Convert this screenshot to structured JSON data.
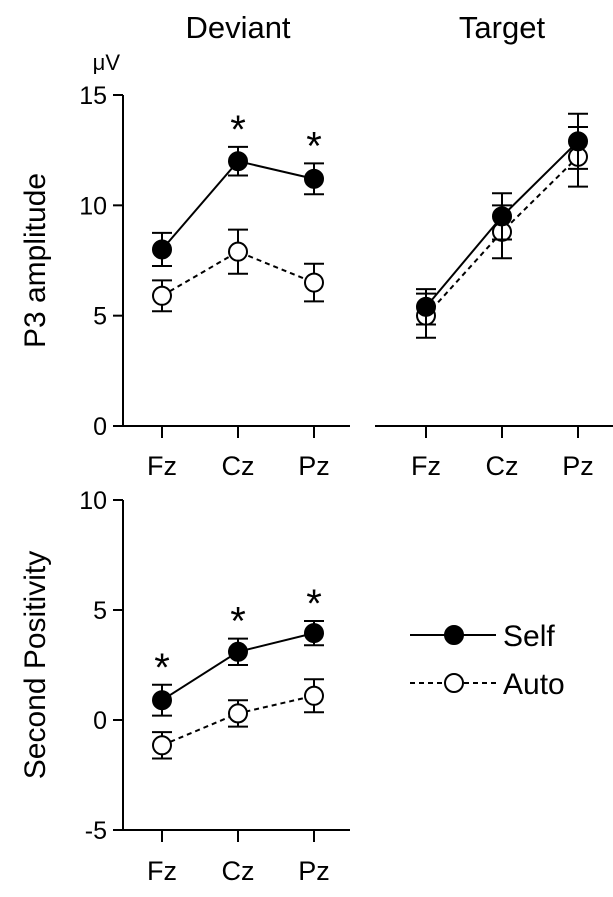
{
  "chart_data": [
    {
      "type": "line",
      "title": "Deviant",
      "unit": "μV",
      "ylabel": "P3 amplitude",
      "categories": [
        "Fz",
        "Cz",
        "Pz"
      ],
      "ylim": [
        0,
        15
      ],
      "yticks": [
        0,
        5,
        10,
        15
      ],
      "significance": [
        "",
        "*",
        "*"
      ],
      "series": [
        {
          "name": "Self",
          "values": [
            8.0,
            12.0,
            11.2
          ],
          "errors": [
            0.75,
            0.65,
            0.7
          ],
          "marker": "filled",
          "line": "solid"
        },
        {
          "name": "Auto",
          "values": [
            5.9,
            7.9,
            6.5
          ],
          "errors": [
            0.7,
            1.0,
            0.85
          ],
          "marker": "open",
          "line": "dashed"
        }
      ]
    },
    {
      "type": "line",
      "title": "Target",
      "categories": [
        "Fz",
        "Cz",
        "Pz"
      ],
      "ylim": [
        0,
        15
      ],
      "series": [
        {
          "name": "Self",
          "values": [
            5.4,
            9.5,
            12.9
          ],
          "errors": [
            0.8,
            1.05,
            1.25
          ],
          "marker": "filled",
          "line": "solid"
        },
        {
          "name": "Auto",
          "values": [
            5.0,
            8.8,
            12.2
          ],
          "errors": [
            1.0,
            1.2,
            1.35
          ],
          "marker": "open",
          "line": "dashed"
        }
      ]
    },
    {
      "type": "line",
      "ylabel": "Second Positivity",
      "categories": [
        "Fz",
        "Cz",
        "Pz"
      ],
      "ylim": [
        -5,
        10
      ],
      "yticks": [
        -5,
        0,
        5,
        10
      ],
      "significance": [
        "*",
        "*",
        "*"
      ],
      "series": [
        {
          "name": "Self",
          "values": [
            0.9,
            3.1,
            3.95
          ],
          "errors": [
            0.7,
            0.6,
            0.55
          ],
          "marker": "filled",
          "line": "solid"
        },
        {
          "name": "Auto",
          "values": [
            -1.15,
            0.3,
            1.1
          ],
          "errors": [
            0.6,
            0.6,
            0.75
          ],
          "marker": "open",
          "line": "dashed"
        }
      ]
    }
  ],
  "legend": {
    "position": "right",
    "entries": [
      {
        "label": "Self",
        "marker": "filled",
        "line": "solid"
      },
      {
        "label": "Auto",
        "marker": "open",
        "line": "dashed"
      }
    ]
  }
}
